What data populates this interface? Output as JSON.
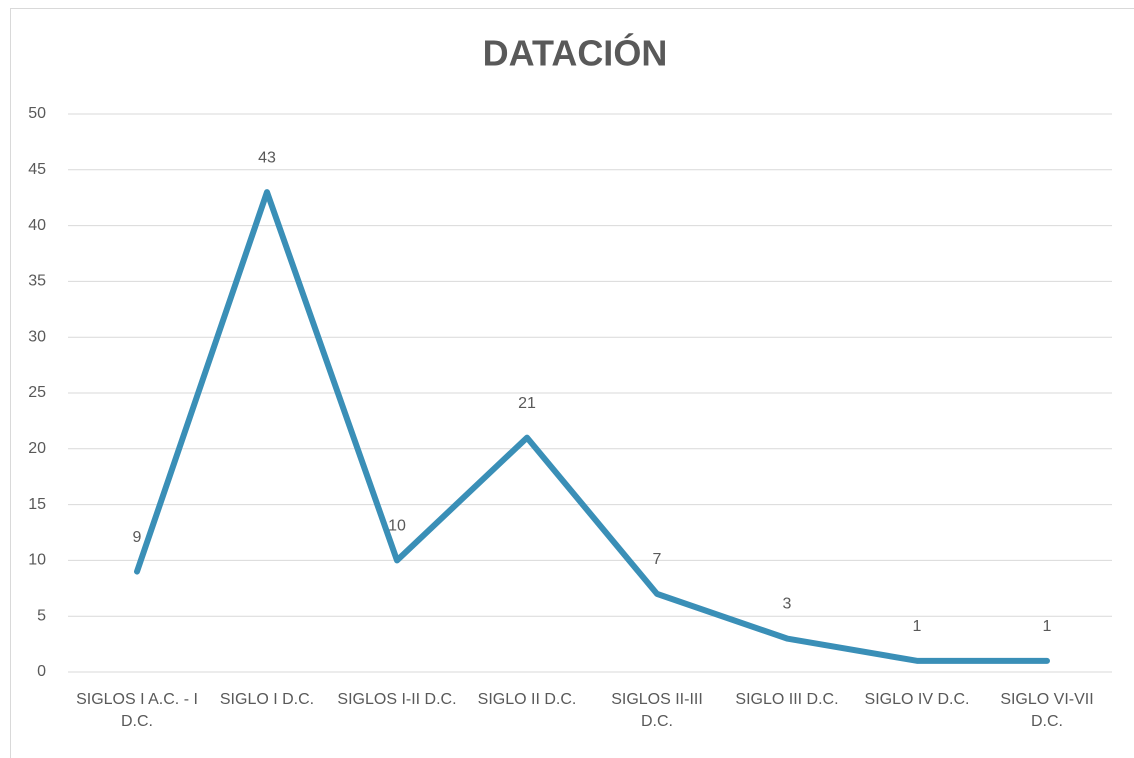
{
  "chart_data": {
    "type": "line",
    "title": "DATACIÓN",
    "categories": [
      "SIGLOS I A.C. - I D.C.",
      "SIGLO I D.C.",
      "SIGLOS I-II D.C.",
      "SIGLO II D.C.",
      "SIGLOS II-III D.C.",
      "SIGLO III D.C.",
      "SIGLO IV D.C.",
      "SIGLO VI-VII D.C."
    ],
    "values": [
      9,
      43,
      10,
      21,
      7,
      3,
      1,
      1
    ],
    "color": "#3a8fb7",
    "ylim": [
      0,
      50
    ],
    "yticks": [
      0,
      5,
      10,
      15,
      20,
      25,
      30,
      35,
      40,
      45,
      50
    ],
    "grid": true
  }
}
